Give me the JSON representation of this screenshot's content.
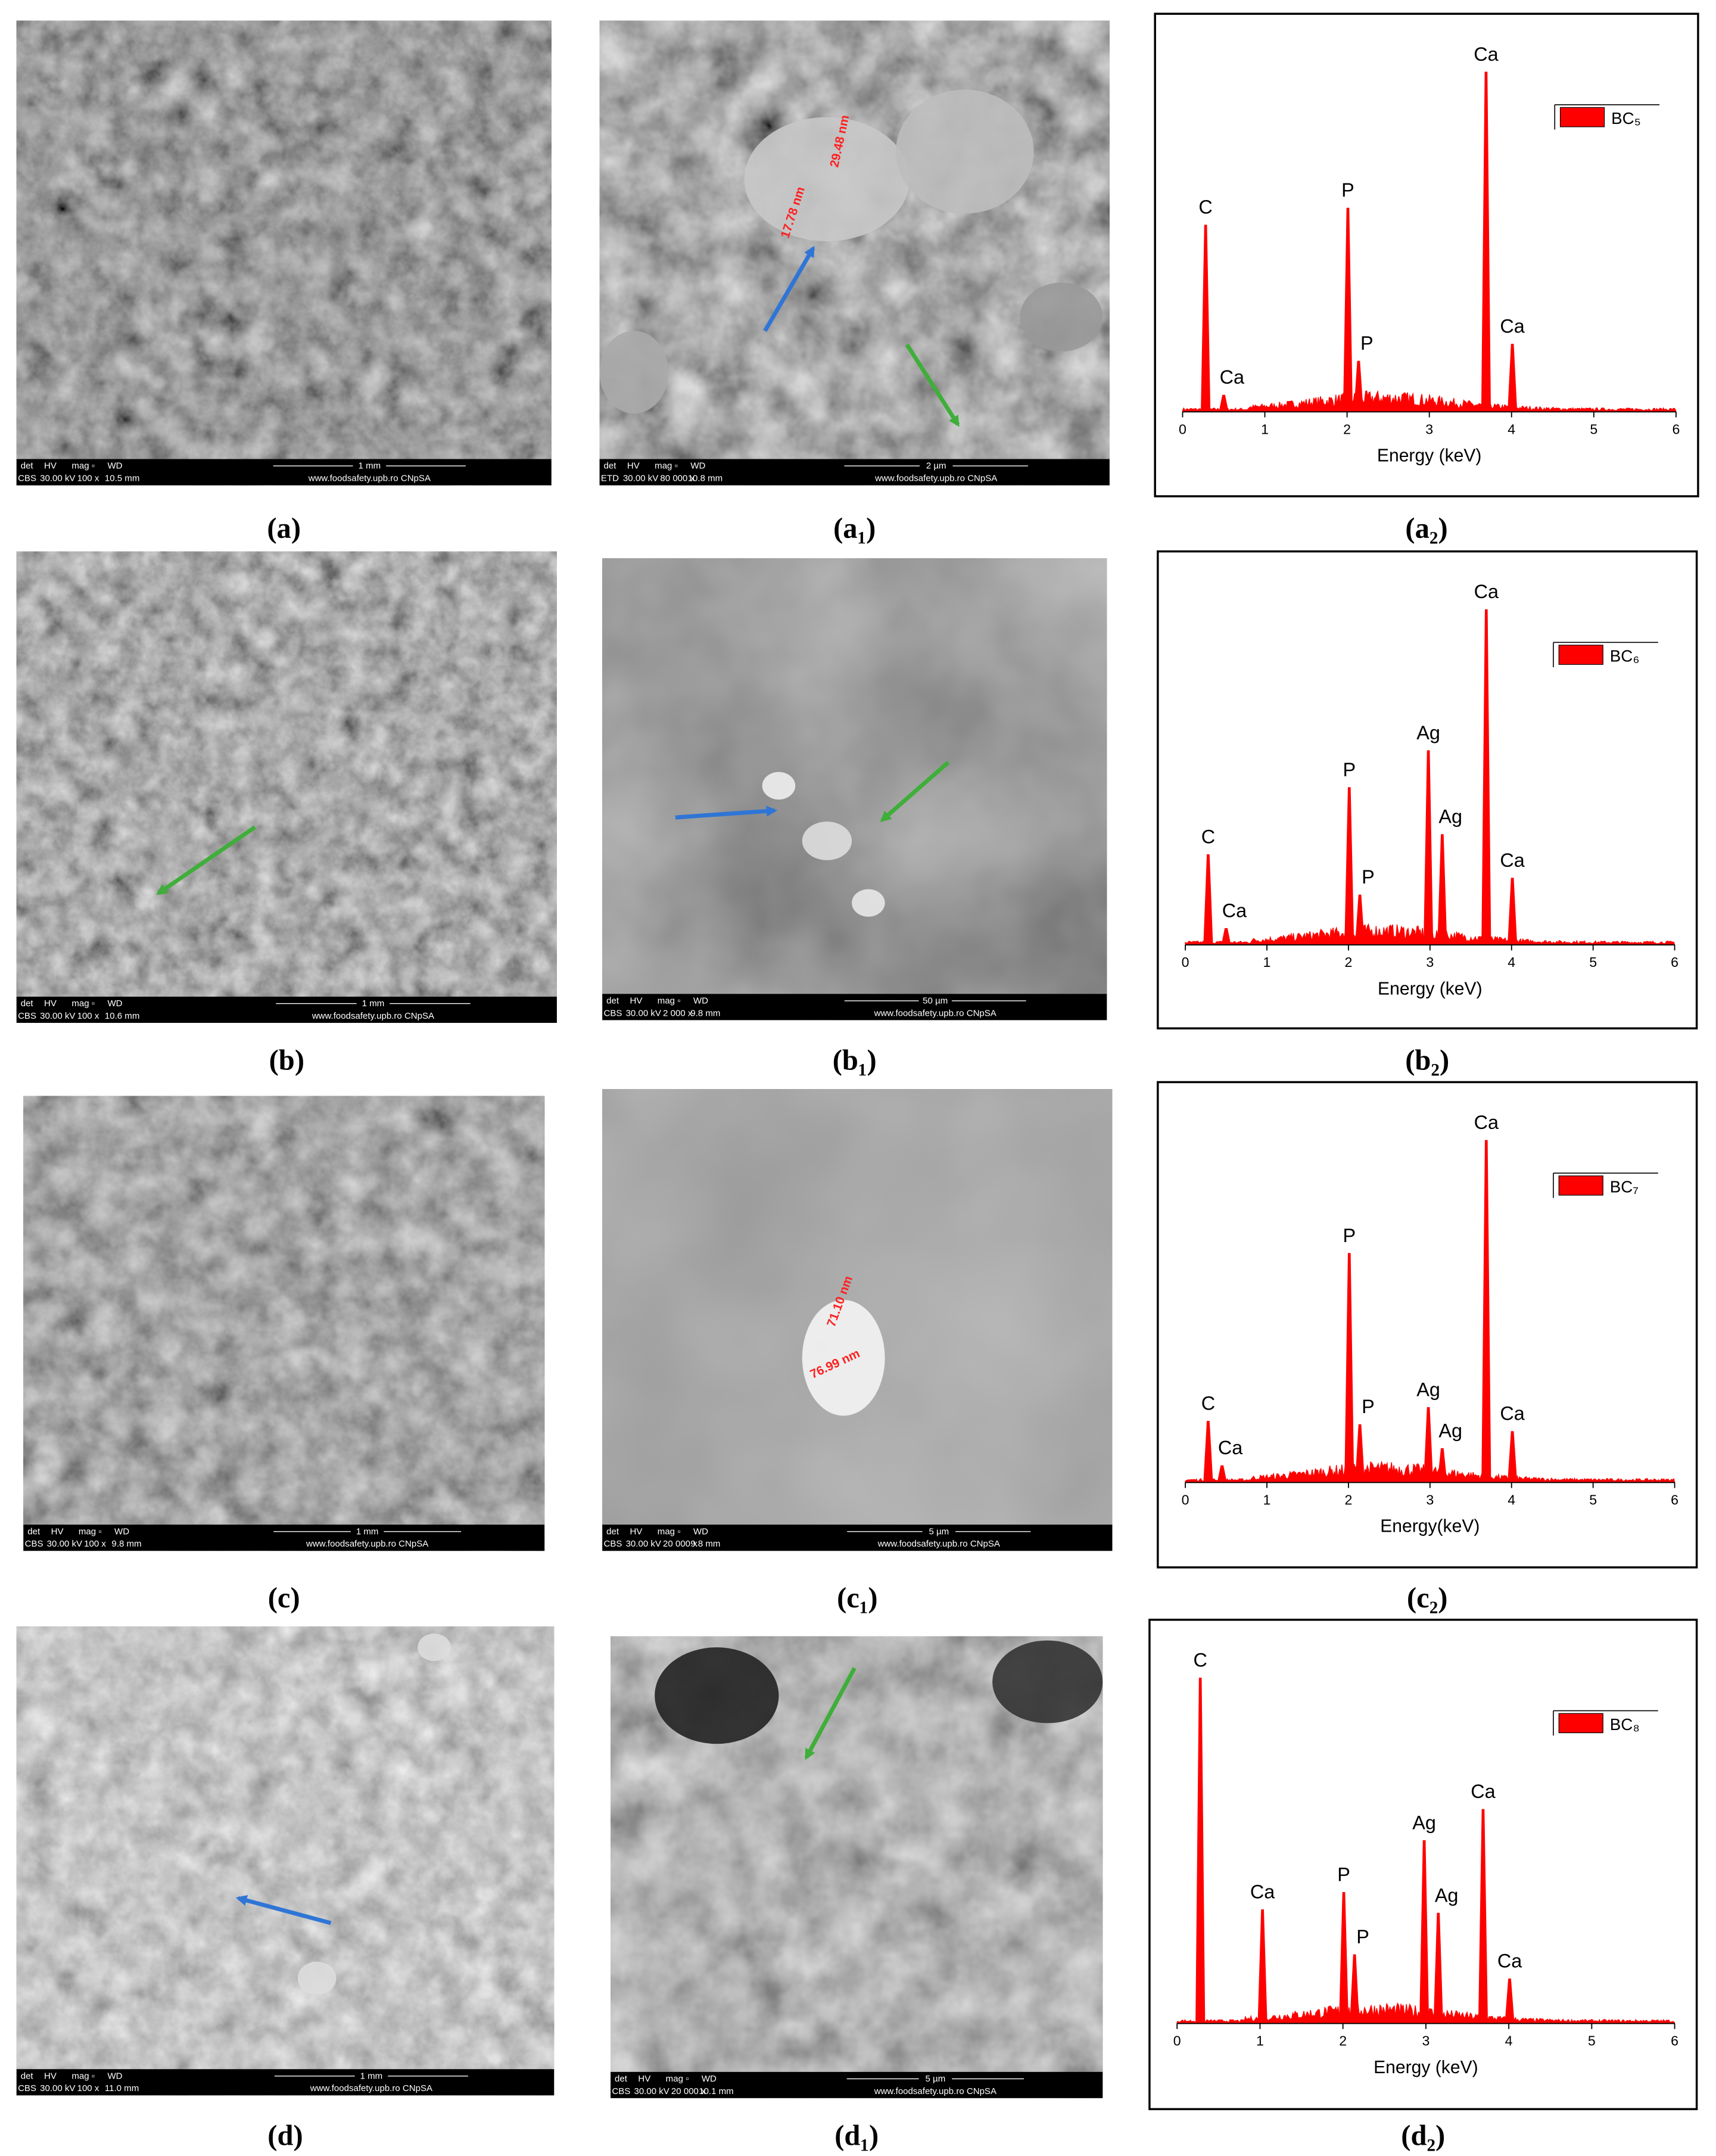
{
  "panels": [
    {
      "sem": {
        "header": [
          "det",
          "HV",
          "mag ▫",
          "WD"
        ],
        "detector": "CBS",
        "hv": "30.00 kV",
        "mag": "100 x",
        "wd": "10.5 mm",
        "scale": "1 mm",
        "credit": "www.foodsafety.upb.ro CNpSA"
      },
      "sem_caption": "(a)",
      "zoom": {
        "header": [
          "det",
          "HV",
          "mag ▫",
          "WD"
        ],
        "detector": "ETD",
        "hv": "30.00 kV",
        "mag": "80 000 x",
        "wd": "10.8 mm",
        "scale": "2 µm",
        "credit": "www.foodsafety.upb.ro CNpSA",
        "measurements": [
          "17.78 nm",
          "29.48 nm"
        ]
      },
      "zoom_caption": "(a₁)"
    },
    {
      "sem": {
        "header": [
          "det",
          "HV",
          "mag ▫",
          "WD"
        ],
        "detector": "CBS",
        "hv": "30.00 kV",
        "mag": "100 x",
        "wd": "10.6 mm",
        "scale": "1 mm",
        "credit": "www.foodsafety.upb.ro CNpSA"
      },
      "sem_caption": "(b)",
      "zoom": {
        "header": [
          "det",
          "HV",
          "mag ▫",
          "WD"
        ],
        "detector": "CBS",
        "hv": "30.00 kV",
        "mag": "2 000 x",
        "wd": "9.8 mm",
        "scale": "50 µm",
        "credit": "www.foodsafety.upb.ro CNpSA",
        "measurements": []
      },
      "zoom_caption": "(b₁)"
    },
    {
      "sem": {
        "header": [
          "det",
          "HV",
          "mag ▫",
          "WD"
        ],
        "detector": "CBS",
        "hv": "30.00 kV",
        "mag": "100 x",
        "wd": "9.8 mm",
        "scale": "1 mm",
        "credit": "www.foodsafety.upb.ro CNpSA"
      },
      "sem_caption": "(c)",
      "zoom": {
        "header": [
          "det",
          "HV",
          "mag ▫",
          "WD"
        ],
        "detector": "CBS",
        "hv": "30.00 kV",
        "mag": "20 000 x",
        "wd": "9.8 mm",
        "scale": "5 µm",
        "credit": "www.foodsafety.upb.ro CNpSA",
        "measurements": [
          "71.10 nm",
          "76.99 nm"
        ]
      },
      "zoom_caption": "(c₁)"
    },
    {
      "sem": {
        "header": [
          "det",
          "HV",
          "mag ▫",
          "WD"
        ],
        "detector": "CBS",
        "hv": "30.00 kV",
        "mag": "100 x",
        "wd": "11.0 mm",
        "scale": "1 mm",
        "credit": "www.foodsafety.upb.ro CNpSA"
      },
      "sem_caption": "(d)",
      "zoom": {
        "header": [
          "det",
          "HV",
          "mag ▫",
          "WD"
        ],
        "detector": "CBS",
        "hv": "30.00 kV",
        "mag": "20 000 x",
        "wd": "10.1 mm",
        "scale": "5 µm",
        "credit": "www.foodsafety.upb.ro CNpSA",
        "measurements": []
      },
      "zoom_caption": "(d₁)"
    }
  ],
  "chart_data": [
    {
      "type": "spectrum",
      "caption": "(a₂)",
      "xlabel": "Energy (keV)",
      "xlim": [
        0,
        6
      ],
      "xticks": [
        0,
        1,
        2,
        3,
        4,
        5,
        6
      ],
      "series": [
        {
          "name": "BC₅",
          "color": "#ff0000",
          "x": [
            0.28,
            0.5,
            2.01,
            2.14,
            3.69,
            4.01
          ],
          "values": [
            55,
            5,
            60,
            15,
            100,
            20
          ],
          "labels": [
            "C",
            "Ca",
            "P",
            "P",
            "Ca",
            "Ca"
          ]
        }
      ]
    },
    {
      "type": "spectrum",
      "caption": "(b₂)",
      "xlabel": "Energy (keV)",
      "xlim": [
        0,
        6
      ],
      "xticks": [
        0,
        1,
        2,
        3,
        4,
        5,
        6
      ],
      "series": [
        {
          "name": "BC₆",
          "color": "#ff0000",
          "x": [
            0.28,
            0.5,
            2.01,
            2.14,
            2.98,
            3.15,
            3.69,
            4.01
          ],
          "values": [
            27,
            5,
            47,
            15,
            58,
            33,
            100,
            20
          ],
          "labels": [
            "C",
            "Ca",
            "P",
            "P",
            "Ag",
            "Ag",
            "Ca",
            "Ca"
          ]
        }
      ]
    },
    {
      "type": "spectrum",
      "caption": "(c₂)",
      "xlabel": "Energy(keV)",
      "xlim": [
        0,
        6
      ],
      "xticks": [
        0,
        1,
        2,
        3,
        4,
        5,
        6
      ],
      "series": [
        {
          "name": "BC₇",
          "color": "#ff0000",
          "x": [
            0.28,
            0.45,
            2.01,
            2.14,
            2.98,
            3.15,
            3.69,
            4.01
          ],
          "values": [
            18,
            5,
            67,
            17,
            22,
            10,
            100,
            15
          ],
          "labels": [
            "C",
            "Ca",
            "P",
            "P",
            "Ag",
            "Ag",
            "Ca",
            "Ca"
          ]
        }
      ]
    },
    {
      "type": "spectrum",
      "caption": "(d₂)",
      "xlabel": "Energy (keV)",
      "xlim": [
        0,
        6
      ],
      "xticks": [
        0,
        1,
        2,
        3,
        4,
        5,
        6
      ],
      "series": [
        {
          "name": "BC₈",
          "color": "#ff0000",
          "x": [
            0.28,
            1.03,
            2.01,
            2.14,
            2.98,
            3.15,
            3.69,
            4.01
          ],
          "values": [
            100,
            33,
            38,
            20,
            53,
            32,
            62,
            13
          ],
          "labels": [
            "C",
            "Ca",
            "P",
            "P",
            "Ag",
            "Ag",
            "Ca",
            "Ca"
          ]
        }
      ]
    }
  ]
}
